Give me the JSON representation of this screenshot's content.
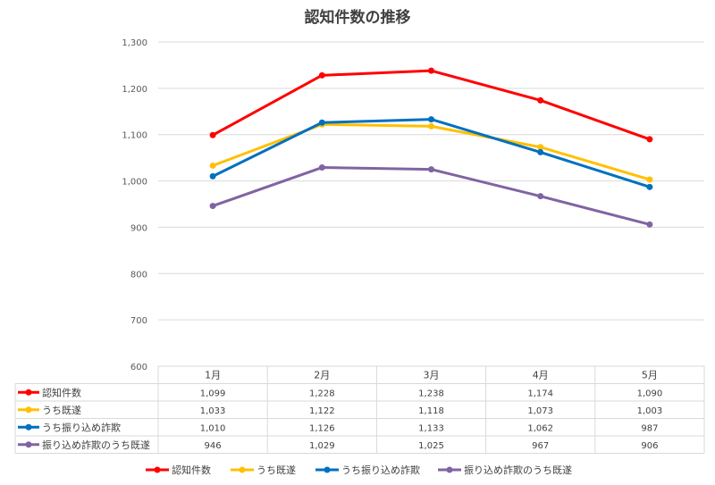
{
  "chart_data": {
    "type": "line",
    "title": "認知件数の推移",
    "categories": [
      "1月",
      "2月",
      "3月",
      "4月",
      "5月"
    ],
    "ylim": [
      600,
      1300
    ],
    "yticks": [
      "600",
      "700",
      "800",
      "900",
      "1,000",
      "1,100",
      "1,200",
      "1,300"
    ],
    "series": [
      {
        "name": "認知件数",
        "color": "#ff0000",
        "values": [
          1099,
          1228,
          1238,
          1174,
          1090
        ],
        "labels": [
          "1,099",
          "1,228",
          "1,238",
          "1,174",
          "1,090"
        ]
      },
      {
        "name": "うち既遂",
        "color": "#ffc000",
        "values": [
          1033,
          1122,
          1118,
          1073,
          1003
        ],
        "labels": [
          "1,033",
          "1,122",
          "1,118",
          "1,073",
          "1,003"
        ]
      },
      {
        "name": "うち振り込め詐欺",
        "color": "#0070c0",
        "values": [
          1010,
          1126,
          1133,
          1062,
          987
        ],
        "labels": [
          "1,010",
          "1,126",
          "1,133",
          "1,062",
          "987"
        ]
      },
      {
        "name": "振り込め詐欺のうち既遂",
        "color": "#8064a2",
        "values": [
          946,
          1029,
          1025,
          967,
          906
        ],
        "labels": [
          "946",
          "1,029",
          "1,025",
          "967",
          "906"
        ]
      }
    ],
    "grid": true,
    "legend": "bottom",
    "data_table": true
  }
}
